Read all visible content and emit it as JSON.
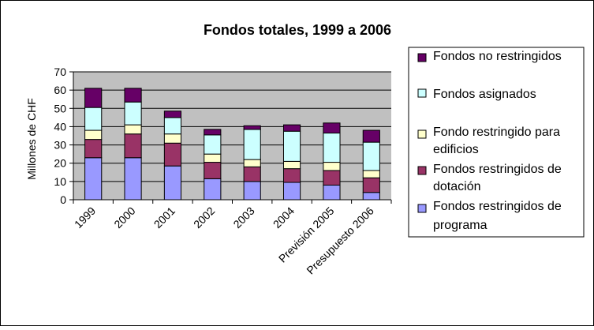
{
  "chart_data": {
    "type": "bar",
    "stacked": true,
    "title": "Fondos totales, 1999 a 2006",
    "xlabel": "",
    "ylabel": "Millones de CHF",
    "ylim": [
      0,
      70
    ],
    "yticks": [
      0,
      10,
      20,
      30,
      40,
      50,
      60,
      70
    ],
    "grid": true,
    "legend_position": "right",
    "categories": [
      "1999",
      "2000",
      "2001",
      "2002",
      "2003",
      "2004",
      "Previsión 2005",
      "Presupuesto 2006"
    ],
    "series": [
      {
        "name": "Fondos restringidos de programa",
        "color": "#9999FF",
        "values": [
          23,
          23,
          18.5,
          11.5,
          10,
          9.5,
          8,
          4
        ]
      },
      {
        "name": "Fondos restringidos de dotación",
        "color": "#993366",
        "values": [
          10,
          13,
          12.5,
          9,
          8,
          7.5,
          8,
          8
        ]
      },
      {
        "name": "Fondo restringido para edificios",
        "color": "#FFFFCC",
        "values": [
          5,
          5,
          5,
          4.5,
          4,
          4,
          4.5,
          4
        ]
      },
      {
        "name": "Fondos asignados",
        "color": "#CCFFFF",
        "values": [
          12.5,
          12.5,
          9,
          10.5,
          16.5,
          16.5,
          16,
          15.5
        ]
      },
      {
        "name": "Fondos no restringidos",
        "color": "#660066",
        "values": [
          10.5,
          7.5,
          3.5,
          3,
          2,
          3.5,
          5.5,
          6.5
        ]
      }
    ],
    "legend_order": [
      "Fondos no restringidos",
      "Fondos asignados",
      "Fondo restringido para edificios",
      "Fondos restringidos de dotación",
      "Fondos restringidos de programa"
    ],
    "colors": {
      "plot_background": "#C0C0C0",
      "border": "#000000",
      "gridline": "#000000"
    }
  }
}
